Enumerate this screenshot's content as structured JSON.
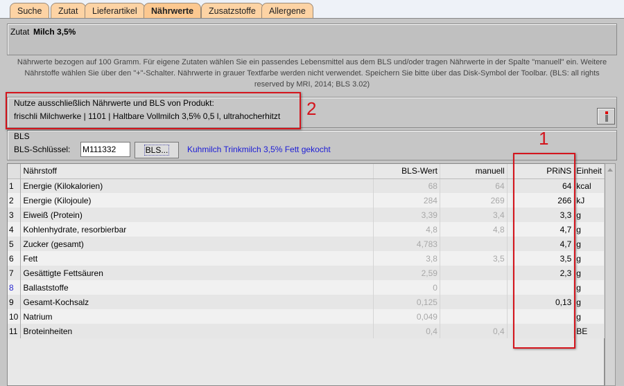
{
  "tabs": [
    {
      "label": "Suche"
    },
    {
      "label": "Zutat"
    },
    {
      "label": "Lieferartikel"
    },
    {
      "label": "Nährwerte",
      "active": true
    },
    {
      "label": "Zusatzstoffe"
    },
    {
      "label": "Allergene"
    }
  ],
  "zutat": {
    "label": "Zutat",
    "name": "Milch 3,5%"
  },
  "info": "Nährwerte bezogen auf 100 Gramm. Für eigene Zutaten wählen Sie ein passendes Lebensmittel aus dem BLS und/oder tragen Nährwerte in der Spalte \"manuell\" ein. Weitere Nährstoffe wählen Sie über den \"+\"-Schalter. Nährwerte in grauer Textfarbe werden nicht verwendet. Speichern Sie bitte über das Disk-Symbol der Toolbar. (BLS: all rights reserved by MRI, 2014; BLS 3.02)",
  "product": {
    "title": "Nutze ausschließlich Nährwerte und BLS von Produkt:",
    "value": "frischli Milchwerke | 1101 | Haltbare Vollmilch 3,5% 0,5 l, ultrahocherhitzt",
    "info_icon": "info-icon"
  },
  "bls": {
    "title": "BLS",
    "key_label": "BLS-Schlüssel:",
    "key_value": "M111332",
    "button": "BLS...",
    "description": "Kuhmilch Trinkmilch 3,5% Fett gekocht"
  },
  "annotations": {
    "one": "1",
    "two": "2",
    "color": "#d4141c"
  },
  "table": {
    "headers": [
      "",
      "Nährstoff",
      "BLS-Wert",
      "manuell",
      "PRiNS",
      "Einheit"
    ],
    "rows": [
      [
        "1",
        "Energie (Kilokalorien)",
        "68",
        "64",
        "64",
        "kcal"
      ],
      [
        "2",
        "Energie (Kilojoule)",
        "284",
        "269",
        "266",
        "kJ"
      ],
      [
        "3",
        "Eiweiß (Protein)",
        "3,39",
        "3,4",
        "3,3",
        "g"
      ],
      [
        "4",
        "Kohlenhydrate, resorbierbar",
        "4,8",
        "4,8",
        "4,7",
        "g"
      ],
      [
        "5",
        "Zucker (gesamt)",
        "4,783",
        "",
        "4,7",
        "g"
      ],
      [
        "6",
        "Fett",
        "3,8",
        "3,5",
        "3,5",
        "g"
      ],
      [
        "7",
        "Gesättigte Fettsäuren",
        "2,59",
        "",
        "2,3",
        "g"
      ],
      [
        "8",
        "Ballaststoffe",
        "0",
        "",
        "",
        "g"
      ],
      [
        "9",
        "Gesamt-Kochsalz",
        "0,125",
        "",
        "0,13",
        "g"
      ],
      [
        "10",
        "Natrium",
        "0,049",
        "",
        "",
        "g"
      ],
      [
        "11",
        "Broteinheiten",
        "0,4",
        "0,4",
        "",
        "BE"
      ]
    ]
  }
}
